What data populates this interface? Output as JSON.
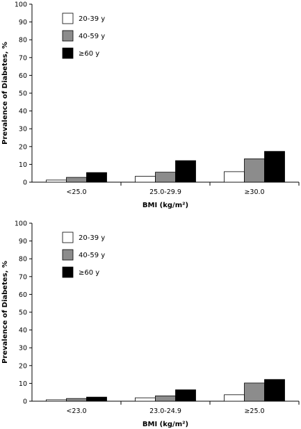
{
  "chart_data": [
    {
      "type": "bar",
      "categories": [
        "<25.0",
        "25.0-29.9",
        "≥30.0"
      ],
      "series": [
        {
          "name": "20-39 y",
          "values": [
            1.2,
            3.3,
            5.9
          ]
        },
        {
          "name": "40-59 y",
          "values": [
            2.7,
            5.6,
            13.1
          ]
        },
        {
          "name": "≥60 y",
          "values": [
            5.4,
            12.1,
            17.3
          ]
        }
      ],
      "xlabel": "BMI (kg/m²)",
      "ylabel": "Prevalence of Diabetes, %",
      "ylim": [
        0,
        100
      ],
      "yticks": [
        "0",
        "10",
        "20",
        "30",
        "40",
        "50",
        "60",
        "70",
        "80",
        "90",
        "100"
      ],
      "legend_position": "top-left",
      "colors": [
        "#ffffff",
        "#8c8c8c",
        "#000000"
      ],
      "grid": false
    },
    {
      "type": "bar",
      "categories": [
        "<23.0",
        "23.0-24.9",
        "≥25.0"
      ],
      "series": [
        {
          "name": "20-39 y",
          "values": [
            0.8,
            1.9,
            3.6
          ]
        },
        {
          "name": "40-59 y",
          "values": [
            1.5,
            3.0,
            10.2
          ]
        },
        {
          "name": "≥60 y",
          "values": [
            2.3,
            6.4,
            12.2
          ]
        }
      ],
      "xlabel": "BMI (kg/m²)",
      "ylabel": "Prevalence of Diabetes, %",
      "ylim": [
        0,
        100
      ],
      "yticks": [
        "0",
        "10",
        "20",
        "30",
        "40",
        "50",
        "60",
        "70",
        "80",
        "90",
        "100"
      ],
      "legend_position": "top-left",
      "colors": [
        "#ffffff",
        "#8c8c8c",
        "#000000"
      ],
      "grid": false
    }
  ]
}
